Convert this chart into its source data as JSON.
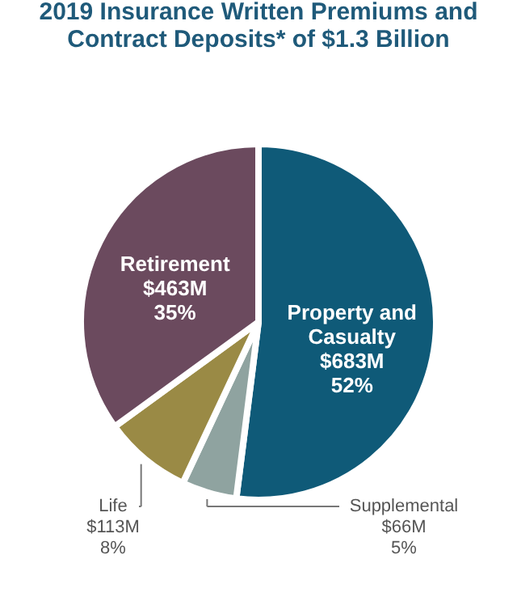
{
  "chart_data": {
    "type": "pie",
    "title": [
      "2019 Insurance Written Premiums and",
      "Contract Deposits* of $1.3 Billion"
    ],
    "categories": [
      "Property and Casualty",
      "Supplemental",
      "Life",
      "Retirement"
    ],
    "values": [
      52,
      5,
      8,
      35
    ],
    "value_labels": [
      "$683M\n52%",
      "$66M\n5%",
      "$113M\n8%",
      "$463M\n35%"
    ],
    "colors": [
      "#0f5a78",
      "#8fa3a0",
      "#9a8a45",
      "#6b4a5e"
    ],
    "legend": false
  }
}
